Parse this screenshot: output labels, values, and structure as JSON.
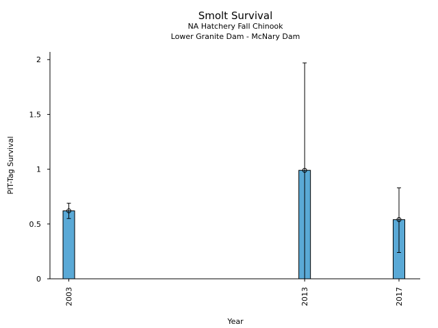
{
  "chart_data": {
    "type": "bar",
    "title": "Smolt Survival",
    "subtitle_lines": [
      "NA Hatchery Fall Chinook",
      "Lower Granite Dam - McNary Dam"
    ],
    "xlabel": "Year",
    "ylabel": "PIT-Tag Survival",
    "x": [
      2003,
      2013,
      2017
    ],
    "x_tick_labels": [
      "2003",
      "2013",
      "2017"
    ],
    "values": [
      0.62,
      0.99,
      0.54
    ],
    "error_low": [
      0.55,
      0.0,
      0.24
    ],
    "error_high": [
      0.69,
      1.97,
      0.83
    ],
    "xlim": [
      2002.2,
      2017.9
    ],
    "ylim": [
      0,
      2.07
    ],
    "y_ticks": [
      0,
      0.5,
      1,
      1.5,
      2
    ],
    "y_tick_labels": [
      "0",
      "0.5",
      "1",
      "1.5",
      "2"
    ],
    "bar_color": "#5aa9d6",
    "grid": false,
    "legend": "none"
  }
}
